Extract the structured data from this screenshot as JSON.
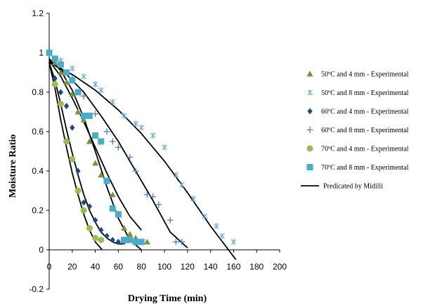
{
  "chart_data": {
    "type": "scatter",
    "xlabel": "Drying Time (min)",
    "ylabel": "Moisture Ratio",
    "xlim": [
      0,
      200
    ],
    "ylim": [
      -0.2,
      1.2
    ],
    "x_ticks": [
      "0",
      "20",
      "40",
      "60",
      "80",
      "100",
      "120",
      "140",
      "160",
      "180",
      "200"
    ],
    "y_ticks": [
      "-0.2",
      "0",
      "0.2",
      "0.4",
      "0.6",
      "0.8",
      "1",
      "1.2"
    ],
    "grid": false,
    "legend_position": "right",
    "series": [
      {
        "name": "50ºC and 4 mm - Experimental",
        "marker": "triangle",
        "color": "#77933c",
        "points": [
          [
            0,
            1
          ],
          [
            5,
            0.95
          ],
          [
            10,
            0.9
          ],
          [
            15,
            0.85
          ],
          [
            20,
            0.79
          ],
          [
            25,
            0.7
          ],
          [
            30,
            0.66
          ],
          [
            35,
            0.55
          ],
          [
            40,
            0.44
          ],
          [
            45,
            0.38
          ],
          [
            55,
            0.28
          ],
          [
            60,
            0.18
          ],
          [
            65,
            0.11
          ],
          [
            70,
            0.08
          ],
          [
            75,
            0.06
          ],
          [
            80,
            0.04
          ],
          [
            85,
            0.04
          ]
        ]
      },
      {
        "name": "50ºC and 8 mm - Experimental",
        "marker": "asterisk",
        "color": "#6fa8d0",
        "points": [
          [
            0,
            1
          ],
          [
            10,
            0.96
          ],
          [
            20,
            0.92
          ],
          [
            30,
            0.88
          ],
          [
            40,
            0.84
          ],
          [
            45,
            0.81
          ],
          [
            55,
            0.75
          ],
          [
            65,
            0.68
          ],
          [
            75,
            0.64
          ],
          [
            80,
            0.62
          ],
          [
            90,
            0.58
          ],
          [
            100,
            0.52
          ],
          [
            110,
            0.38
          ],
          [
            115,
            0.33
          ],
          [
            125,
            0.26
          ],
          [
            135,
            0.17
          ],
          [
            145,
            0.12
          ],
          [
            150,
            0.07
          ],
          [
            160,
            0.04
          ]
        ]
      },
      {
        "name": "60ºC and 4 mm - Experimental",
        "marker": "diamond",
        "color": "#1f497d",
        "points": [
          [
            0,
            1
          ],
          [
            5,
            0.87
          ],
          [
            10,
            0.8
          ],
          [
            15,
            0.73
          ],
          [
            20,
            0.62
          ],
          [
            25,
            0.4
          ],
          [
            30,
            0.24
          ],
          [
            35,
            0.22
          ],
          [
            40,
            0.15
          ],
          [
            45,
            0.1
          ],
          [
            50,
            0.07
          ],
          [
            55,
            0.05
          ],
          [
            60,
            0.04
          ],
          [
            65,
            0.04
          ]
        ]
      },
      {
        "name": "60ºC and 8 mm - Experimental",
        "marker": "plus",
        "color": "#4f81bd",
        "points": [
          [
            0,
            1
          ],
          [
            10,
            0.94
          ],
          [
            20,
            0.87
          ],
          [
            30,
            0.78
          ],
          [
            40,
            0.69
          ],
          [
            50,
            0.6
          ],
          [
            55,
            0.55
          ],
          [
            60,
            0.52
          ],
          [
            70,
            0.47
          ],
          [
            75,
            0.4
          ],
          [
            85,
            0.28
          ],
          [
            90,
            0.27
          ],
          [
            95,
            0.23
          ],
          [
            105,
            0.15
          ],
          [
            110,
            0.04
          ],
          [
            115,
            0.04
          ]
        ]
      },
      {
        "name": "70ºC and 4 mm - Experimental",
        "marker": "circle",
        "color": "#9bbb59",
        "points": [
          [
            0,
            1
          ],
          [
            5,
            0.84
          ],
          [
            10,
            0.74
          ],
          [
            15,
            0.55
          ],
          [
            20,
            0.46
          ],
          [
            25,
            0.3
          ],
          [
            30,
            0.2
          ],
          [
            35,
            0.11
          ],
          [
            40,
            0.06
          ],
          [
            45,
            0.05
          ]
        ]
      },
      {
        "name": "70ºC and 8 mm - Experimental",
        "marker": "square",
        "color": "#4bacc6",
        "points": [
          [
            0,
            1
          ],
          [
            5,
            0.97
          ],
          [
            10,
            0.94
          ],
          [
            15,
            0.9
          ],
          [
            20,
            0.86
          ],
          [
            25,
            0.8
          ],
          [
            30,
            0.68
          ],
          [
            35,
            0.68
          ],
          [
            40,
            0.58
          ],
          [
            45,
            0.55
          ],
          [
            50,
            0.35
          ],
          [
            55,
            0.21
          ],
          [
            60,
            0.18
          ],
          [
            65,
            0.05
          ],
          [
            70,
            0.05
          ],
          [
            75,
            0.04
          ],
          [
            80,
            0.04
          ]
        ]
      }
    ],
    "model_name": "Predicated by Midilli",
    "model_color": "#000000",
    "model_curves": [
      [
        [
          0,
          0.96
        ],
        [
          10,
          0.88
        ],
        [
          20,
          0.77
        ],
        [
          30,
          0.65
        ],
        [
          40,
          0.52
        ],
        [
          50,
          0.39
        ],
        [
          60,
          0.27
        ],
        [
          70,
          0.17
        ],
        [
          80,
          0.1
        ]
      ],
      [
        [
          0,
          0.95
        ],
        [
          20,
          0.89
        ],
        [
          40,
          0.81
        ],
        [
          60,
          0.71
        ],
        [
          80,
          0.59
        ],
        [
          100,
          0.45
        ],
        [
          120,
          0.29
        ],
        [
          140,
          0.12
        ],
        [
          162,
          -0.05
        ]
      ],
      [
        [
          0,
          0.95
        ],
        [
          5,
          0.86
        ],
        [
          10,
          0.74
        ],
        [
          15,
          0.61
        ],
        [
          20,
          0.49
        ],
        [
          25,
          0.38
        ],
        [
          30,
          0.28
        ],
        [
          35,
          0.2
        ],
        [
          40,
          0.14
        ],
        [
          45,
          0.09
        ],
        [
          50,
          0.06
        ],
        [
          55,
          0.04
        ],
        [
          60,
          0.03
        ],
        [
          64,
          0.03
        ]
      ],
      [
        [
          0,
          0.96
        ],
        [
          15,
          0.89
        ],
        [
          30,
          0.8
        ],
        [
          45,
          0.68
        ],
        [
          60,
          0.55
        ],
        [
          75,
          0.4
        ],
        [
          90,
          0.25
        ],
        [
          105,
          0.09
        ],
        [
          120,
          0.01
        ]
      ],
      [
        [
          0,
          0.95
        ],
        [
          5,
          0.82
        ],
        [
          10,
          0.66
        ],
        [
          15,
          0.52
        ],
        [
          20,
          0.39
        ],
        [
          25,
          0.28
        ],
        [
          30,
          0.18
        ],
        [
          35,
          0.1
        ],
        [
          40,
          0.04
        ],
        [
          46,
          0.0
        ]
      ],
      [
        [
          0,
          0.97
        ],
        [
          10,
          0.91
        ],
        [
          20,
          0.81
        ],
        [
          30,
          0.67
        ],
        [
          40,
          0.5
        ],
        [
          50,
          0.32
        ],
        [
          60,
          0.16
        ],
        [
          70,
          0.05
        ],
        [
          80,
          0.0
        ]
      ]
    ]
  }
}
